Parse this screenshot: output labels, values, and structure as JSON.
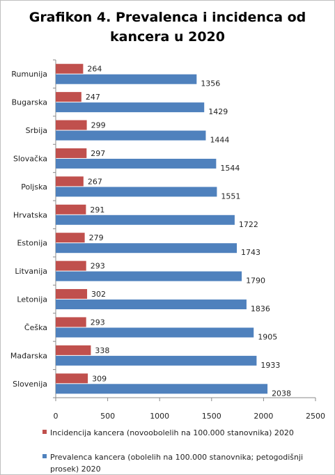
{
  "chart_data": {
    "type": "bar",
    "orientation": "horizontal",
    "title_line1": "Grafikon 4. Prevalenca i incidenca od",
    "title_line2": "kancera u 2020",
    "categories": [
      "Rumunija",
      "Bugarska",
      "Srbija",
      "Slovačka",
      "Poljska",
      "Hrvatska",
      "Estonija",
      "Litvanija",
      "Letonija",
      "Češka",
      "Mađarska",
      "Slovenija"
    ],
    "series": [
      {
        "name": "Incidencija kancera (novoobolelih na 100.000 stanovnika) 2020",
        "legend_line1": "Incidencija kancera (novoobolelih na 100.000 stanovnika) 2020",
        "color": "#c0504d",
        "values": [
          264,
          247,
          299,
          297,
          267,
          291,
          279,
          293,
          302,
          293,
          338,
          309
        ]
      },
      {
        "name": "Prevalenca kancera (obolelih na 100.000 stanovnika; petogodišnji prosek) 2020",
        "legend_line1": "Prevalenca kancera  (obolelih na 100.000 stanovnika; petogodišnji",
        "legend_line2": "prosek) 2020",
        "color": "#4f81bd",
        "values": [
          1356,
          1429,
          1444,
          1544,
          1551,
          1722,
          1743,
          1790,
          1836,
          1905,
          1933,
          2038
        ]
      }
    ],
    "xlim": [
      0,
      2500
    ],
    "xticks": [
      0,
      500,
      1000,
      1500,
      2000,
      2500
    ],
    "grid": false,
    "legend_position": "bottom"
  }
}
